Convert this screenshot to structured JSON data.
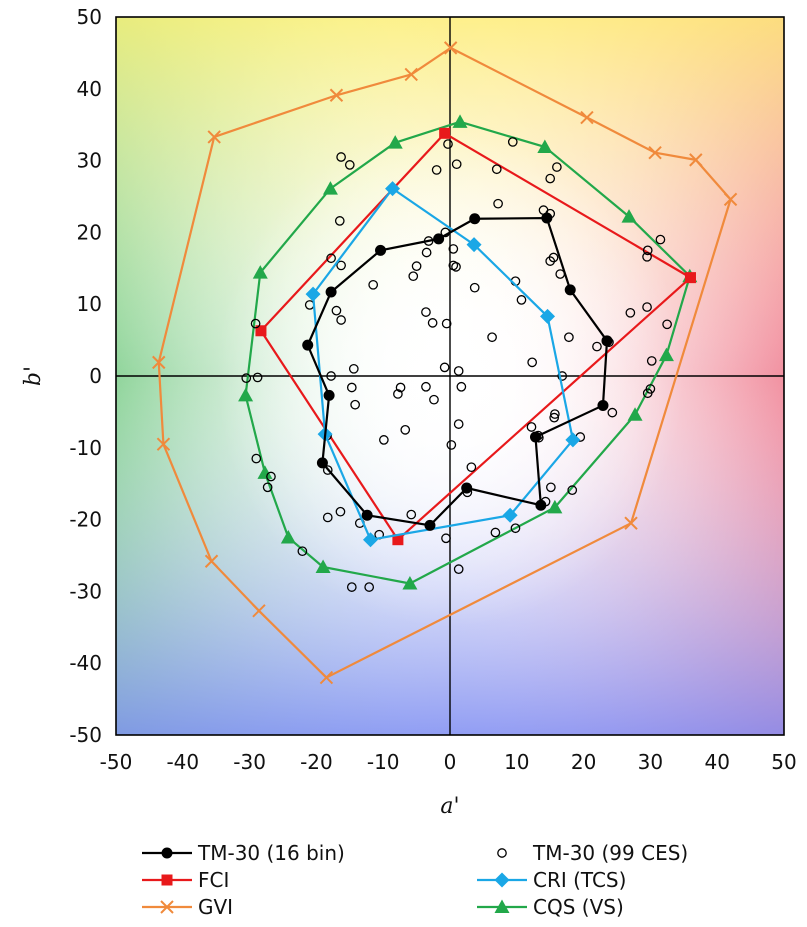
{
  "chart_data": {
    "type": "scatter",
    "xlabel": "a'",
    "ylabel": "b'",
    "xlim": [
      -50,
      50
    ],
    "ylim": [
      -50,
      50
    ],
    "xticks": [
      -50,
      -40,
      -30,
      -20,
      -10,
      0,
      10,
      20,
      30,
      40,
      50
    ],
    "yticks": [
      -50,
      -40,
      -30,
      -20,
      -10,
      0,
      10,
      20,
      30,
      40,
      50
    ],
    "grid": false,
    "legend": "bottom",
    "series": [
      {
        "name": "TM-30 (16 bin)",
        "style": "line-marker",
        "marker": "circle",
        "closed": true,
        "color": "#000000",
        "points": [
          [
            23.5,
            4.9
          ],
          [
            18,
            12
          ],
          [
            14.5,
            22
          ],
          [
            3.7,
            21.9
          ],
          [
            -1.7,
            19.1
          ],
          [
            -10.4,
            17.5
          ],
          [
            -17.8,
            11.7
          ],
          [
            -21.3,
            4.3
          ],
          [
            -18.1,
            -2.7
          ],
          [
            -19.1,
            -12.1
          ],
          [
            -12.4,
            -19.4
          ],
          [
            -3,
            -20.8
          ],
          [
            2.5,
            -15.6
          ],
          [
            13.6,
            -18
          ],
          [
            12.8,
            -8.5
          ],
          [
            22.9,
            -4.1
          ]
        ]
      },
      {
        "name": "TM-30 (99 CES)",
        "style": "marker",
        "marker": "open-circle",
        "color": "#000000",
        "points": [
          [
            -0.3,
            32.3
          ],
          [
            -2,
            28.7
          ],
          [
            1,
            29.5
          ],
          [
            9.4,
            32.6
          ],
          [
            16,
            29.1
          ],
          [
            15,
            27.5
          ],
          [
            7,
            28.8
          ],
          [
            -15,
            29.4
          ],
          [
            -16.3,
            30.5
          ],
          [
            -0.7,
            20
          ],
          [
            -3.2,
            18.8
          ],
          [
            0.5,
            17.7
          ],
          [
            0.5,
            15.4
          ],
          [
            0.9,
            15.2
          ],
          [
            -3.5,
            17.2
          ],
          [
            -5.5,
            13.9
          ],
          [
            -5,
            15.3
          ],
          [
            -11.5,
            12.7
          ],
          [
            -16.3,
            15.4
          ],
          [
            -17.8,
            16.4
          ],
          [
            -16.5,
            21.6
          ],
          [
            -17,
            9.1
          ],
          [
            -16.3,
            7.8
          ],
          [
            -3.6,
            8.9
          ],
          [
            -2.6,
            7.4
          ],
          [
            -0.5,
            7.3
          ],
          [
            7.2,
            24
          ],
          [
            14,
            23.1
          ],
          [
            15,
            22.6
          ],
          [
            15.5,
            16.5
          ],
          [
            15,
            16
          ],
          [
            16.5,
            14.2
          ],
          [
            9.8,
            13.2
          ],
          [
            10.7,
            10.6
          ],
          [
            3.7,
            12.3
          ],
          [
            6.3,
            5.4
          ],
          [
            12.3,
            1.9
          ],
          [
            16.8,
            0
          ],
          [
            17.8,
            5.4
          ],
          [
            22,
            4.1
          ],
          [
            27,
            8.8
          ],
          [
            29.5,
            9.6
          ],
          [
            29.6,
            17.5
          ],
          [
            31.5,
            19
          ],
          [
            32.5,
            7.2
          ],
          [
            29.5,
            16.6
          ],
          [
            30.2,
            2.1
          ],
          [
            29.6,
            -2.4
          ],
          [
            30,
            -1.8
          ],
          [
            24.3,
            -5.1
          ],
          [
            19.5,
            -8.5
          ],
          [
            15.6,
            -5.8
          ],
          [
            15.7,
            -5.3
          ],
          [
            12.2,
            -7.1
          ],
          [
            13.3,
            -8.6
          ],
          [
            3.2,
            -12.7
          ],
          [
            1.3,
            -6.7
          ],
          [
            0.2,
            -9.6
          ],
          [
            1.7,
            -1.5
          ],
          [
            1.3,
            0.7
          ],
          [
            -0.8,
            1.2
          ],
          [
            -3.6,
            -1.5
          ],
          [
            -7.4,
            -1.6
          ],
          [
            -7.8,
            -2.5
          ],
          [
            -2.4,
            -3.3
          ],
          [
            -6.7,
            -7.5
          ],
          [
            -9.9,
            -8.9
          ],
          [
            -14.2,
            -4
          ],
          [
            -14.7,
            -1.6
          ],
          [
            -14.4,
            1
          ],
          [
            -17.8,
            0
          ],
          [
            -18.4,
            -8.3
          ],
          [
            -18.3,
            -13.1
          ],
          [
            -26.8,
            -14
          ],
          [
            -27.3,
            -15.5
          ],
          [
            -29,
            -11.5
          ],
          [
            -28.8,
            -0.2
          ],
          [
            -30.5,
            -0.3
          ],
          [
            -29.1,
            7.3
          ],
          [
            -21,
            9.9
          ],
          [
            -16.4,
            -18.9
          ],
          [
            -18.3,
            -19.7
          ],
          [
            -13.5,
            -20.5
          ],
          [
            -10.6,
            -22.1
          ],
          [
            -5.8,
            -19.3
          ],
          [
            -0.6,
            -22.6
          ],
          [
            2.6,
            -16.2
          ],
          [
            1.3,
            -26.9
          ],
          [
            6.8,
            -21.8
          ],
          [
            9.8,
            -21.2
          ],
          [
            14.3,
            -17.5
          ],
          [
            15.1,
            -15.5
          ],
          [
            18.3,
            -15.9
          ],
          [
            -14.7,
            -29.4
          ],
          [
            -12.1,
            -29.4
          ],
          [
            -22.1,
            -24.4
          ],
          [
            2.5,
            -15.7
          ],
          [
            13.2,
            -8.3
          ],
          [
            23.8,
            4.7
          ]
        ]
      },
      {
        "name": "FCI",
        "style": "line-marker",
        "marker": "square",
        "closed": true,
        "color": "#e8191b",
        "points": [
          [
            -0.8,
            33.8
          ],
          [
            36,
            13.7
          ],
          [
            -7.8,
            -22.8
          ],
          [
            -28.3,
            6.3
          ]
        ]
      },
      {
        "name": "CRI (TCS)",
        "style": "line-marker",
        "marker": "diamond",
        "closed": true,
        "color": "#1aa7e6",
        "points": [
          [
            -8.6,
            26.1
          ],
          [
            3.6,
            18.3
          ],
          [
            14.6,
            8.3
          ],
          [
            18.4,
            -8.9
          ],
          [
            9,
            -19.4
          ],
          [
            -11.9,
            -22.8
          ],
          [
            -18.7,
            -8.1
          ],
          [
            -20.5,
            11.4
          ]
        ]
      },
      {
        "name": "GVI",
        "style": "line-marker",
        "marker": "x",
        "closed": true,
        "color": "#f08a3c",
        "points": [
          [
            0.1,
            45.7
          ],
          [
            20.5,
            36
          ],
          [
            30.7,
            31.1
          ],
          [
            36.8,
            30.1
          ],
          [
            42,
            24.6
          ],
          [
            27.1,
            -20.5
          ],
          [
            -18.5,
            -42
          ],
          [
            -28.6,
            -32.7
          ],
          [
            -35.7,
            -25.8
          ],
          [
            -42.9,
            -9.5
          ],
          [
            -43.6,
            1.9
          ],
          [
            -35.3,
            33.3
          ],
          [
            -17,
            39.1
          ],
          [
            -5.8,
            42
          ]
        ]
      },
      {
        "name": "CQS (VS)",
        "style": "line-marker",
        "marker": "triangle",
        "closed": true,
        "color": "#22a84a",
        "points": [
          [
            1.5,
            35.4
          ],
          [
            14.2,
            31.9
          ],
          [
            26.8,
            22.2
          ],
          [
            35.9,
            13.9
          ],
          [
            32.4,
            2.9
          ],
          [
            27.7,
            -5.4
          ],
          [
            15.7,
            -18.3
          ],
          [
            -6,
            -28.9
          ],
          [
            -19,
            -26.6
          ],
          [
            -24.2,
            -22.5
          ],
          [
            -27.7,
            -13.5
          ],
          [
            -30.6,
            -2.7
          ],
          [
            -28.4,
            14.4
          ],
          [
            -17.9,
            26.1
          ],
          [
            -8.2,
            32.5
          ]
        ]
      }
    ]
  }
}
